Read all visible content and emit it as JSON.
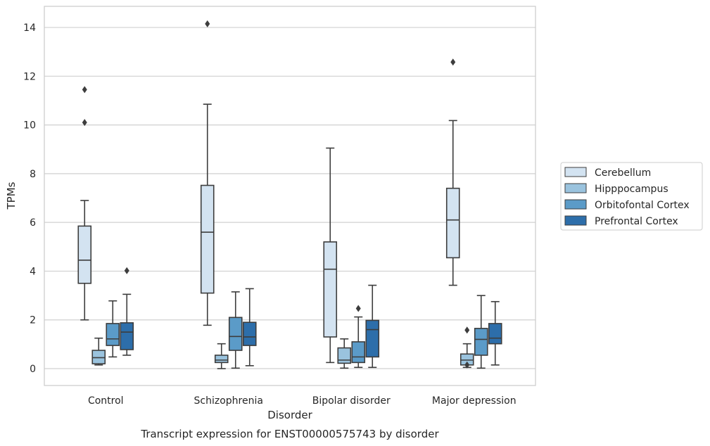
{
  "chart_data": {
    "type": "box",
    "title": "",
    "caption": "Transcript expression for ENST00000575743 by disorder",
    "xlabel": "Disorder",
    "ylabel": "TPMs",
    "ylim": [
      -0.7,
      14.85
    ],
    "yticks": [
      0,
      2,
      4,
      6,
      8,
      10,
      12,
      14
    ],
    "grid": "horizontal",
    "legend": "right",
    "categories": [
      "Control",
      "Schizophrenia",
      "Bipolar disorder",
      "Major depression"
    ],
    "series": [
      {
        "name": "Cerebellum",
        "color": "#d3e3f1",
        "boxes": [
          {
            "whislo": 2.0,
            "q1": 3.5,
            "med": 4.45,
            "q3": 5.85,
            "whishi": 6.9,
            "fliers": [
              10.1,
              11.45
            ]
          },
          {
            "whislo": 1.78,
            "q1": 3.1,
            "med": 5.6,
            "q3": 7.52,
            "whishi": 10.85,
            "fliers": [
              14.15
            ]
          },
          {
            "whislo": 0.25,
            "q1": 1.3,
            "med": 4.08,
            "q3": 5.2,
            "whishi": 9.05,
            "fliers": []
          },
          {
            "whislo": 3.42,
            "q1": 4.55,
            "med": 6.1,
            "q3": 7.4,
            "whishi": 10.18,
            "fliers": [
              12.58
            ]
          }
        ]
      },
      {
        "name": "Hipppocampus",
        "color": "#9ac3de",
        "boxes": [
          {
            "whislo": 0.15,
            "q1": 0.2,
            "med": 0.45,
            "q3": 0.75,
            "whishi": 1.25,
            "fliers": []
          },
          {
            "whislo": 0.0,
            "q1": 0.25,
            "med": 0.35,
            "q3": 0.55,
            "whishi": 1.02,
            "fliers": []
          },
          {
            "whislo": 0.02,
            "q1": 0.22,
            "med": 0.35,
            "q3": 0.85,
            "whishi": 1.22,
            "fliers": []
          },
          {
            "whislo": 0.05,
            "q1": 0.15,
            "med": 0.35,
            "q3": 0.6,
            "whishi": 1.02,
            "fliers": [
              0.15,
              1.58
            ]
          }
        ]
      },
      {
        "name": "Orbitofontal Cortex",
        "color": "#5b9bc8",
        "boxes": [
          {
            "whislo": 0.48,
            "q1": 0.95,
            "med": 1.22,
            "q3": 1.85,
            "whishi": 2.78,
            "fliers": []
          },
          {
            "whislo": 0.02,
            "q1": 0.75,
            "med": 1.32,
            "q3": 2.1,
            "whishi": 3.15,
            "fliers": []
          },
          {
            "whislo": 0.05,
            "q1": 0.25,
            "med": 0.48,
            "q3": 1.1,
            "whishi": 2.12,
            "fliers": [
              2.47
            ]
          },
          {
            "whislo": 0.02,
            "q1": 0.55,
            "med": 1.2,
            "q3": 1.65,
            "whishi": 3.0,
            "fliers": []
          }
        ]
      },
      {
        "name": "Prefrontal Cortex",
        "color": "#2d6eaa",
        "boxes": [
          {
            "whislo": 0.55,
            "q1": 0.78,
            "med": 1.5,
            "q3": 1.88,
            "whishi": 3.05,
            "fliers": [
              4.02
            ]
          },
          {
            "whislo": 0.12,
            "q1": 0.95,
            "med": 1.3,
            "q3": 1.9,
            "whishi": 3.28,
            "fliers": []
          },
          {
            "whislo": 0.05,
            "q1": 0.48,
            "med": 1.6,
            "q3": 1.98,
            "whishi": 3.42,
            "fliers": []
          },
          {
            "whislo": 0.15,
            "q1": 1.02,
            "med": 1.25,
            "q3": 1.85,
            "whishi": 2.75,
            "fliers": []
          }
        ]
      }
    ]
  }
}
